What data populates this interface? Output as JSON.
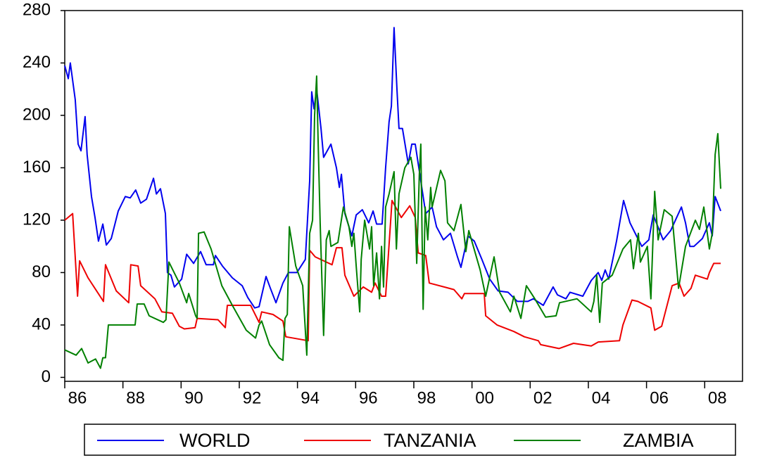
{
  "chart_data": {
    "type": "line",
    "xlim": [
      1986,
      2009.3
    ],
    "xticks": [
      {
        "value": 1986,
        "label": "86"
      },
      {
        "value": 1988,
        "label": "88"
      },
      {
        "value": 1990,
        "label": "90"
      },
      {
        "value": 1992,
        "label": "92"
      },
      {
        "value": 1994,
        "label": "94"
      },
      {
        "value": 1996,
        "label": "96"
      },
      {
        "value": 1998,
        "label": "98"
      },
      {
        "value": 2000,
        "label": "00"
      },
      {
        "value": 2002,
        "label": "02"
      },
      {
        "value": 2004,
        "label": "04"
      },
      {
        "value": 2006,
        "label": "06"
      },
      {
        "value": 2008,
        "label": "08"
      }
    ],
    "ylim": [
      -3,
      280
    ],
    "yticks": [
      0,
      40,
      80,
      120,
      160,
      200,
      240,
      280
    ],
    "grid": false,
    "legend": "bottom",
    "series": [
      {
        "name": "WORLD",
        "color": "#0000ee",
        "x": [
          1986.0,
          1986.12,
          1986.19,
          1986.36,
          1986.46,
          1986.56,
          1986.7,
          1986.77,
          1986.92,
          1987.04,
          1987.16,
          1987.31,
          1987.43,
          1987.6,
          1987.84,
          1988.08,
          1988.25,
          1988.44,
          1988.61,
          1988.81,
          1989.05,
          1989.15,
          1989.29,
          1989.46,
          1989.53,
          1989.65,
          1989.77,
          1990.02,
          1990.19,
          1990.43,
          1990.67,
          1990.86,
          1991.11,
          1991.18,
          1991.42,
          1991.76,
          1992.1,
          1992.29,
          1992.53,
          1992.68,
          1992.92,
          1993.07,
          1993.26,
          1993.5,
          1993.69,
          1993.98,
          1994.27,
          1994.42,
          1994.49,
          1994.57,
          1994.66,
          1994.81,
          1994.9,
          1995.15,
          1995.34,
          1995.44,
          1995.51,
          1995.63,
          1995.87,
          1996.02,
          1996.23,
          1996.45,
          1996.6,
          1996.72,
          1996.91,
          1997.03,
          1997.15,
          1997.23,
          1997.32,
          1997.42,
          1997.49,
          1997.61,
          1997.81,
          1997.93,
          1998.05,
          1998.24,
          1998.41,
          1998.63,
          1998.78,
          1999.02,
          1999.26,
          1999.5,
          1999.62,
          1999.86,
          2000.08,
          2000.34,
          2000.61,
          2000.9,
          2001.24,
          2001.56,
          2001.92,
          2002.11,
          2002.45,
          2002.79,
          2002.94,
          2003.23,
          2003.37,
          2003.81,
          2004.1,
          2004.34,
          2004.46,
          2004.58,
          2004.7,
          2004.97,
          2005.21,
          2005.43,
          2005.7,
          2005.84,
          2006.08,
          2006.23,
          2006.57,
          2006.83,
          2007.2,
          2007.34,
          2007.49,
          2007.63,
          2007.92,
          2008.16,
          2008.26,
          2008.36,
          2008.55
        ],
        "values": [
          238,
          228,
          240,
          212,
          178,
          173,
          199,
          170,
          138,
          122,
          104,
          117,
          101,
          106,
          127,
          138,
          137,
          143,
          133,
          136,
          152,
          140,
          144,
          125,
          80,
          78,
          69,
          75,
          94,
          87,
          96,
          86,
          86,
          93,
          85,
          76,
          70,
          61,
          53,
          54,
          77,
          68,
          57,
          72,
          80,
          80,
          90,
          150,
          218,
          205,
          220,
          190,
          168,
          178,
          160,
          145,
          155,
          125,
          108,
          124,
          128,
          118,
          127,
          117,
          117,
          160,
          195,
          207,
          267,
          220,
          190,
          190,
          163,
          178,
          178,
          150,
          125,
          130,
          115,
          105,
          110,
          92,
          84,
          108,
          104,
          90,
          75,
          66,
          65,
          58,
          58,
          60,
          55,
          69,
          63,
          60,
          65,
          62,
          74,
          80,
          74,
          82,
          75,
          104,
          135,
          118,
          106,
          100,
          105,
          124,
          105,
          112,
          130,
          118,
          100,
          100,
          106,
          118,
          108,
          138,
          127
        ]
      },
      {
        "name": "TANZANIA",
        "color": "#ee0000",
        "x": [
          1986.0,
          1986.27,
          1986.44,
          1986.51,
          1986.8,
          1987.33,
          1987.4,
          1987.77,
          1988.2,
          1988.27,
          1988.52,
          1988.61,
          1989.1,
          1989.34,
          1989.7,
          1989.94,
          1990.11,
          1990.48,
          1990.55,
          1991.27,
          1991.52,
          1991.59,
          1992.39,
          1992.68,
          1992.77,
          1993.16,
          1993.5,
          1993.6,
          1994.37,
          1994.42,
          1994.61,
          1995.19,
          1995.34,
          1995.53,
          1995.63,
          1995.94,
          1996.26,
          1996.55,
          1996.67,
          1996.89,
          1997.03,
          1997.25,
          1997.57,
          1997.86,
          1998.05,
          1998.15,
          1998.41,
          1998.53,
          1999.38,
          1999.65,
          1999.74,
          2000.42,
          2000.47,
          2000.86,
          2001.44,
          2001.8,
          2002.28,
          2002.36,
          2002.99,
          2003.49,
          2004.1,
          2004.34,
          2005.07,
          2005.19,
          2005.5,
          2005.7,
          2006.15,
          2006.28,
          2006.52,
          2006.88,
          2007.12,
          2007.29,
          2007.53,
          2007.68,
          2008.09,
          2008.16,
          2008.31,
          2008.55
        ],
        "values": [
          120,
          125,
          62,
          89,
          76,
          58,
          86,
          66,
          57,
          86,
          85,
          70,
          60,
          50,
          49,
          39,
          37,
          38,
          45,
          44,
          38,
          55,
          55,
          42,
          50,
          48,
          43,
          31,
          28,
          97,
          92,
          86,
          99,
          99,
          78,
          62,
          69,
          65,
          72,
          62,
          62,
          135,
          122,
          131,
          122,
          95,
          93,
          72,
          67,
          60,
          64,
          64,
          47,
          40,
          35,
          31,
          28,
          25,
          22,
          26,
          24,
          27,
          28,
          40,
          59,
          58,
          53,
          36,
          39,
          70,
          72,
          62,
          68,
          78,
          75,
          80,
          87,
          87
        ]
      },
      {
        "name": "ZAMBIA",
        "color": "#008000",
        "x": [
          1986.0,
          1986.39,
          1986.58,
          1986.8,
          1987.06,
          1987.23,
          1987.31,
          1987.4,
          1987.5,
          1988.42,
          1988.49,
          1988.73,
          1988.9,
          1989.39,
          1989.48,
          1989.58,
          1989.94,
          1990.19,
          1990.26,
          1990.5,
          1990.55,
          1990.6,
          1990.79,
          1991.03,
          1991.4,
          1991.76,
          1992.24,
          1992.56,
          1992.68,
          1992.77,
          1993.04,
          1993.36,
          1993.5,
          1993.57,
          1993.65,
          1993.72,
          1993.94,
          1994.18,
          1994.32,
          1994.42,
          1994.52,
          1994.59,
          1994.66,
          1994.71,
          1994.78,
          1994.9,
          1994.99,
          1995.09,
          1995.15,
          1995.39,
          1995.58,
          1995.77,
          1995.87,
          1995.94,
          1996.02,
          1996.14,
          1996.19,
          1996.31,
          1996.48,
          1996.55,
          1996.62,
          1996.72,
          1996.82,
          1996.89,
          1996.96,
          1997.03,
          1997.15,
          1997.32,
          1997.4,
          1997.49,
          1997.69,
          1997.9,
          1998.0,
          1998.1,
          1998.19,
          1998.24,
          1998.32,
          1998.39,
          1998.48,
          1998.58,
          1998.63,
          1998.92,
          1999.07,
          1999.16,
          1999.38,
          1999.62,
          1999.79,
          1999.89,
          2000.28,
          2000.47,
          2000.76,
          2000.95,
          2001.32,
          2001.44,
          2001.68,
          2001.87,
          2002.16,
          2002.53,
          2002.89,
          2003.01,
          2003.61,
          2004.1,
          2004.19,
          2004.29,
          2004.39,
          2004.48,
          2004.82,
          2005.19,
          2005.45,
          2005.55,
          2005.72,
          2005.79,
          2006.03,
          2006.15,
          2006.28,
          2006.4,
          2006.61,
          2006.88,
          2007.1,
          2007.34,
          2007.68,
          2007.82,
          2007.97,
          2008.16,
          2008.26,
          2008.36,
          2008.45,
          2008.55
        ],
        "values": [
          21,
          17,
          22,
          11,
          14,
          7,
          15,
          15,
          40,
          40,
          56,
          56,
          47,
          42,
          44,
          88,
          72,
          57,
          64,
          47,
          45,
          110,
          111,
          98,
          70,
          55,
          36,
          30,
          40,
          43,
          25,
          15,
          13,
          45,
          48,
          115,
          85,
          70,
          17,
          110,
          120,
          200,
          230,
          180,
          118,
          32,
          105,
          112,
          100,
          103,
          130,
          115,
          100,
          110,
          85,
          50,
          90,
          120,
          98,
          115,
          70,
          95,
          60,
          100,
          69,
          130,
          140,
          157,
          98,
          140,
          160,
          168,
          155,
          87,
          155,
          178,
          52,
          130,
          105,
          145,
          130,
          158,
          150,
          118,
          112,
          132,
          96,
          112,
          82,
          62,
          92,
          65,
          50,
          62,
          45,
          70,
          60,
          46,
          47,
          57,
          60,
          50,
          58,
          78,
          42,
          72,
          78,
          98,
          105,
          83,
          110,
          88,
          100,
          60,
          142,
          105,
          128,
          123,
          68,
          100,
          120,
          113,
          130,
          98,
          110,
          170,
          186,
          144
        ]
      }
    ]
  }
}
